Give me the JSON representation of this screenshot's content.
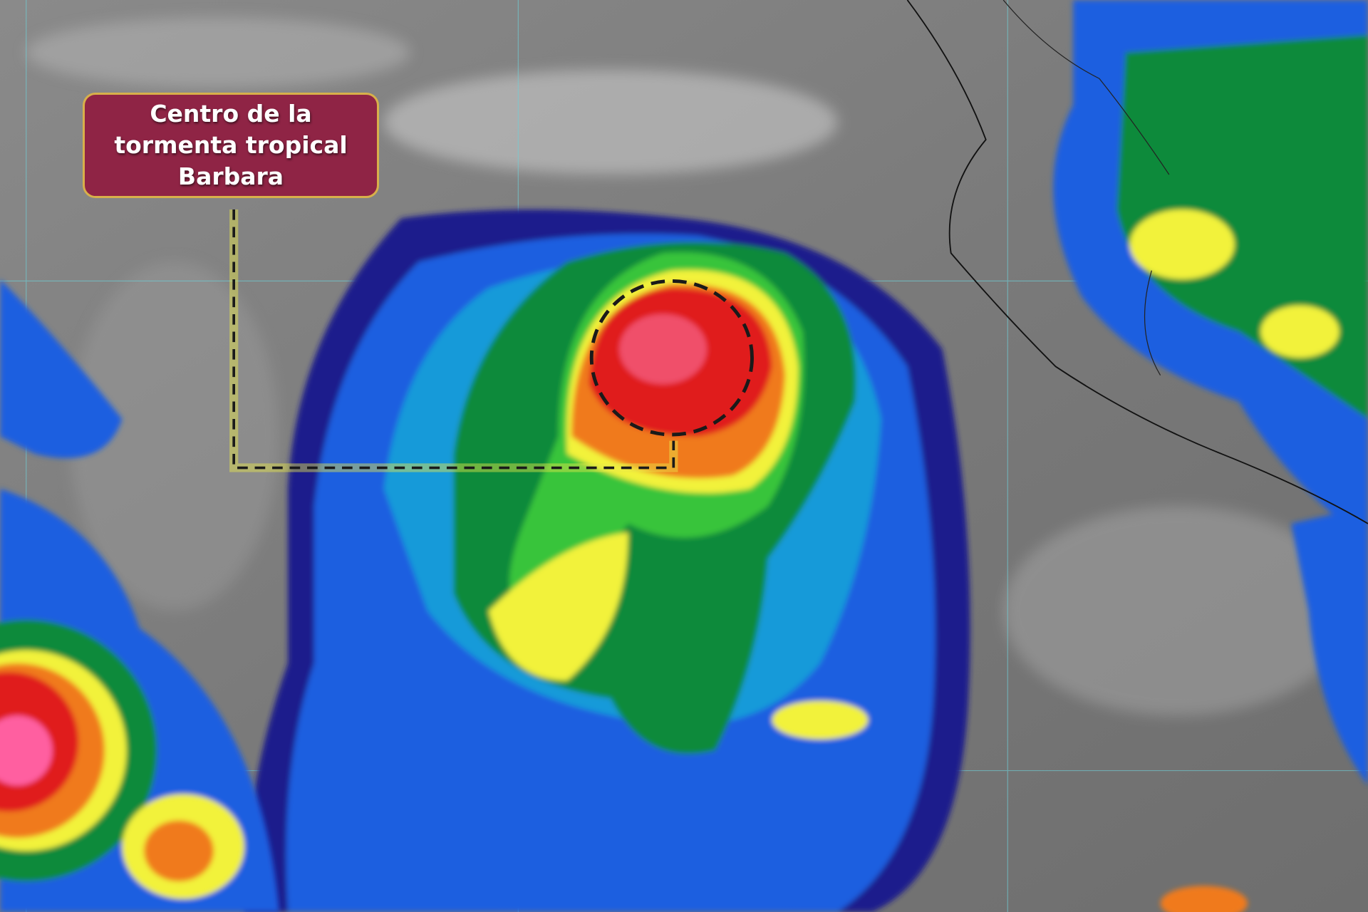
{
  "annotation": {
    "lines": [
      "Centro de la",
      "tormenta tropical",
      "Barbara"
    ]
  },
  "colors": {
    "label_background": "#8f2445",
    "label_border": "#d8b04a",
    "callout_line": "#1a1a1a",
    "callout_glow": "#e8e84a",
    "cloud_top_scale": [
      "#1a1a8c",
      "#1f5fe0",
      "#17b3d6",
      "#0a8a3a",
      "#38c43a",
      "#f2f23a",
      "#f07a1a",
      "#e01a1a",
      "#ff5fa0"
    ]
  },
  "features": [
    "storm-center-circle",
    "coastline",
    "lat-lon-grid"
  ]
}
